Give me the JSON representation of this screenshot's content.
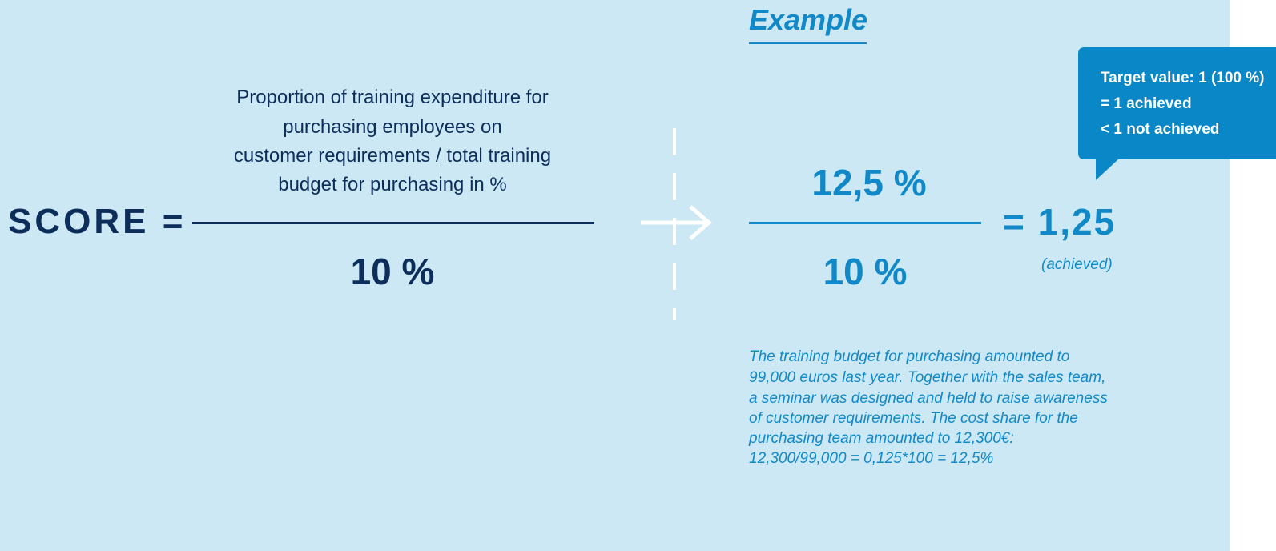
{
  "example_title": "Example",
  "formula": {
    "label": "SCORE =",
    "numerator_lines": [
      "Proportion of training expenditure for",
      "purchasing employees on",
      "customer requirements / total training",
      "budget for purchasing in %"
    ],
    "denominator": "10 %"
  },
  "example": {
    "numerator": "12,5 %",
    "denominator": "10 %",
    "result": "= 1,25",
    "status": "(achieved)"
  },
  "callout": {
    "lines": [
      "Target value: 1 (100 %)",
      "= 1 achieved",
      "< 1 not achieved"
    ]
  },
  "explanation": {
    "lines": [
      "The training budget for purchasing amounted to",
      "99,000 euros last year. Together with the sales team,",
      "a seminar was designed and held to raise awareness",
      "of customer requirements. The cost share for the",
      "purchasing team amounted to 12,300€:",
      "12,300/99,000 = 0,125*100 = 12,5%"
    ]
  }
}
